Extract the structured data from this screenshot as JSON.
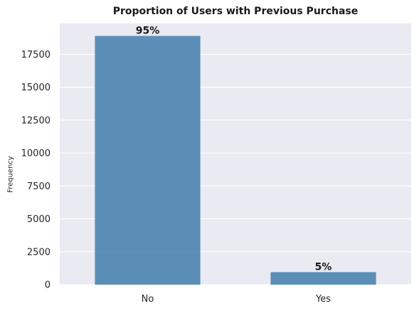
{
  "chart_data": {
    "type": "bar",
    "title": "Proportion of Users with Previous Purchase",
    "xlabel": "",
    "ylabel": "Frequency",
    "categories": [
      "No",
      "Yes"
    ],
    "values": [
      18900,
      950
    ],
    "bar_labels": [
      "95%",
      "5%"
    ],
    "ylim": [
      0,
      19845
    ],
    "yticks": [
      0,
      2500,
      5000,
      7500,
      10000,
      12500,
      15000,
      17500
    ],
    "grid": true,
    "colors": {
      "bar": "#4a84b0",
      "background": "#eaeaf2",
      "grid": "#ffffff"
    }
  }
}
